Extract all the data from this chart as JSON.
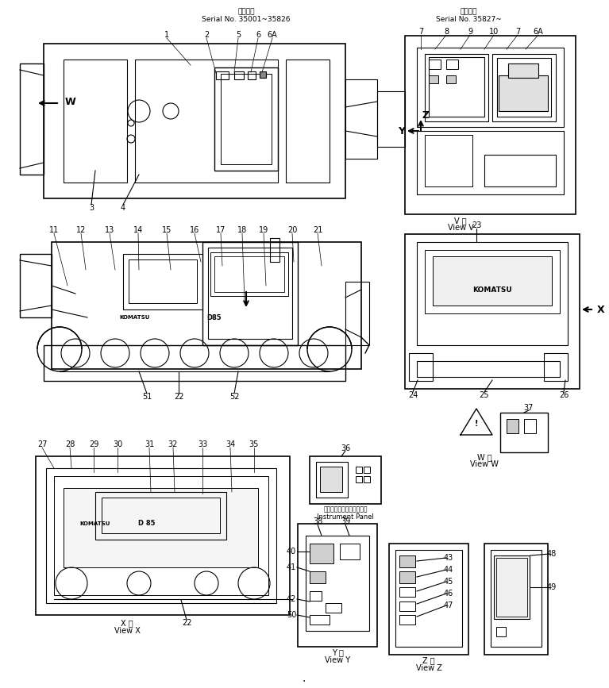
{
  "title_left": "適用号機\nSerial No. 35001~35826",
  "title_right": "適用号機\nSerial No. 35827~",
  "bg_color": "#ffffff",
  "line_color": "#000000",
  "fig_width": 7.67,
  "fig_height": 8.67,
  "dpi": 100,
  "labels_top_left": [
    "1",
    "2",
    "5",
    "6",
    "6A"
  ],
  "labels_top_right": [
    "7",
    "8",
    "9",
    "10",
    "7",
    "6A"
  ],
  "labels_side": [
    "11",
    "12",
    "13",
    "14",
    "15",
    "16",
    "17",
    "18",
    "19",
    "20",
    "21"
  ],
  "labels_bottom_left": [
    "3",
    "4"
  ],
  "labels_51_22_52": [
    "51",
    "22",
    "52"
  ],
  "labels_view_x": [
    "27",
    "28",
    "29",
    "30",
    "31",
    "32",
    "33",
    "34",
    "35"
  ],
  "view_x_label": "X 視\nView X",
  "view_y_label": "Y 視\nView Y",
  "view_z_label": "Z 視\nView Z",
  "view_v_label": "V 視\nView V",
  "view_w_label": "W 視\nView W",
  "panel_label": "インストゥルメントパネル\nInstrument Panel",
  "labels_panel": [
    "36"
  ],
  "labels_y_view": [
    "38",
    "39",
    "40",
    "41",
    "42",
    "50"
  ],
  "labels_z_view1": [
    "43",
    "44",
    "45",
    "46",
    "47"
  ],
  "labels_z_view2": [
    "48",
    "49"
  ],
  "labels_right_side": [
    "23",
    "24",
    "25",
    "26"
  ],
  "label_37": "37",
  "label_22_bottom": "22",
  "label_w": "W",
  "label_x": "X",
  "label_y": "Y",
  "label_z": "Z"
}
